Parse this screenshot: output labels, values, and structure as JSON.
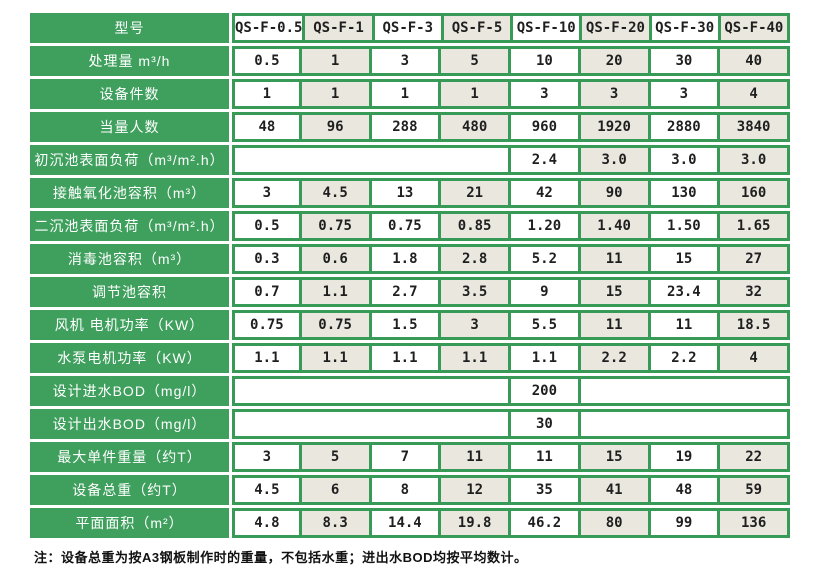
{
  "colors": {
    "green": "#3fa05e",
    "border_green": "#379a56",
    "beige": "#e9e7de",
    "cell_text": "#1f1f1f"
  },
  "table": {
    "header": {
      "label": "型号",
      "models": [
        "QS-F-0.5",
        "QS-F-1",
        "QS-F-3",
        "QS-F-5",
        "QS-F-10",
        "QS-F-20",
        "QS-F-30",
        "QS-F-40"
      ]
    },
    "rows": [
      {
        "label": "处理量 m³/h",
        "values": [
          "0.5",
          "1",
          "3",
          "5",
          "10",
          "20",
          "30",
          "40"
        ]
      },
      {
        "label": "设备件数",
        "values": [
          "1",
          "1",
          "1",
          "1",
          "3",
          "3",
          "3",
          "4"
        ]
      },
      {
        "label": "当量人数",
        "values": [
          "48",
          "96",
          "288",
          "480",
          "960",
          "1920",
          "2880",
          "3840"
        ]
      },
      {
        "label": "初沉池表面负荷（m³/m².h）",
        "values": [
          "2.4",
          "3.0",
          "3.0",
          "3.0"
        ],
        "merged_left_span": 4
      },
      {
        "label": "接触氧化池容积（m³）",
        "values": [
          "3",
          "4.5",
          "13",
          "21",
          "42",
          "90",
          "130",
          "160"
        ]
      },
      {
        "label": "二沉池表面负荷（m³/m².h）",
        "values": [
          "0.5",
          "0.75",
          "0.75",
          "0.85",
          "1.20",
          "1.40",
          "1.50",
          "1.65"
        ]
      },
      {
        "label": "消毒池容积（m³）",
        "values": [
          "0.3",
          "0.6",
          "1.8",
          "2.8",
          "5.2",
          "11",
          "15",
          "27"
        ]
      },
      {
        "label": "调节池容积",
        "values": [
          "0.7",
          "1.1",
          "2.7",
          "3.5",
          "9",
          "15",
          "23.4",
          "32"
        ]
      },
      {
        "label": "风机 电机功率（KW）",
        "values": [
          "0.75",
          "0.75",
          "1.5",
          "3",
          "5.5",
          "11",
          "11",
          "18.5"
        ]
      },
      {
        "label": "水泵电机功率（KW）",
        "values": [
          "1.1",
          "1.1",
          "1.1",
          "1.1",
          "1.1",
          "2.2",
          "2.2",
          "4"
        ]
      },
      {
        "label": "设计进水BOD（mg/l）",
        "values": [
          "200"
        ],
        "merged_left_span": 4,
        "merged_right_span": 3
      },
      {
        "label": "设计出水BOD（mg/l）",
        "values": [
          "30"
        ],
        "merged_left_span": 4,
        "merged_right_span": 3
      },
      {
        "label": "最大单件重量（约T）",
        "values": [
          "3",
          "5",
          "7",
          "11",
          "11",
          "15",
          "19",
          "22"
        ]
      },
      {
        "label": "设备总重（约T）",
        "values": [
          "4.5",
          "6",
          "8",
          "12",
          "35",
          "41",
          "48",
          "59"
        ]
      },
      {
        "label": "平面面积（m²）",
        "values": [
          "4.8",
          "8.3",
          "14.4",
          "19.8",
          "46.2",
          "80",
          "99",
          "136"
        ]
      }
    ],
    "note": "注：设备总重为按A3钢板制作时的重量，不包括水重；进出水BOD均按平均数计。"
  }
}
